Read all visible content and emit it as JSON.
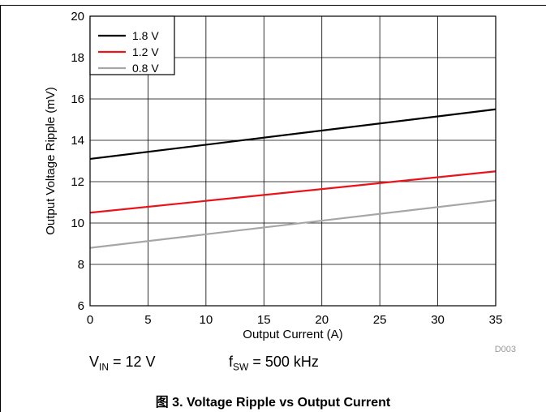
{
  "chart_data": {
    "type": "line",
    "xlabel": "Output Current (A)",
    "ylabel": "Output Voltage Ripple (mV)",
    "xlim": [
      0,
      35
    ],
    "ylim": [
      6,
      20
    ],
    "xticks": [
      0,
      5,
      10,
      15,
      20,
      25,
      30,
      35
    ],
    "yticks": [
      6,
      8,
      10,
      12,
      14,
      16,
      18,
      20
    ],
    "grid": true,
    "legend_position": "top-left",
    "series": [
      {
        "name": "1.8 V",
        "color": "#000000",
        "x": [
          0,
          35
        ],
        "y": [
          13.1,
          15.5
        ]
      },
      {
        "name": "1.2 V",
        "color": "#e8141a",
        "x": [
          0,
          35
        ],
        "y": [
          10.5,
          12.5
        ]
      },
      {
        "name": "0.8 V",
        "color": "#a6a6a6",
        "x": [
          0,
          35
        ],
        "y": [
          8.8,
          11.1
        ]
      }
    ],
    "annotation": "D003"
  },
  "conditions": {
    "vin_symbol": "V",
    "vin_sub": "IN",
    "vin_value": " = 12 V",
    "fsw_symbol": "f",
    "fsw_sub": "SW",
    "fsw_value": " = 500 kHz"
  },
  "caption": "图 3. Voltage Ripple vs Output Current"
}
